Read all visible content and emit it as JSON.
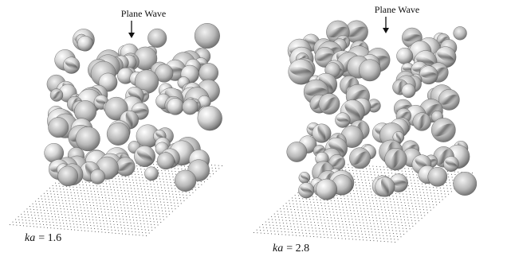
{
  "panels": [
    {
      "id": "left",
      "top_label": "Plane Wave",
      "param_symbol": "ka",
      "param_value": "= 1.6"
    },
    {
      "id": "right",
      "top_label": "Plane Wave",
      "param_symbol": "ka",
      "param_value": "= 2.8"
    }
  ],
  "colors": {
    "sphere_light": "#f4f4f4",
    "sphere_mid": "#a9a9a9",
    "sphere_dark": "#4a4a4a",
    "grid_dot": "#3a3a3a",
    "text": "#111111"
  }
}
